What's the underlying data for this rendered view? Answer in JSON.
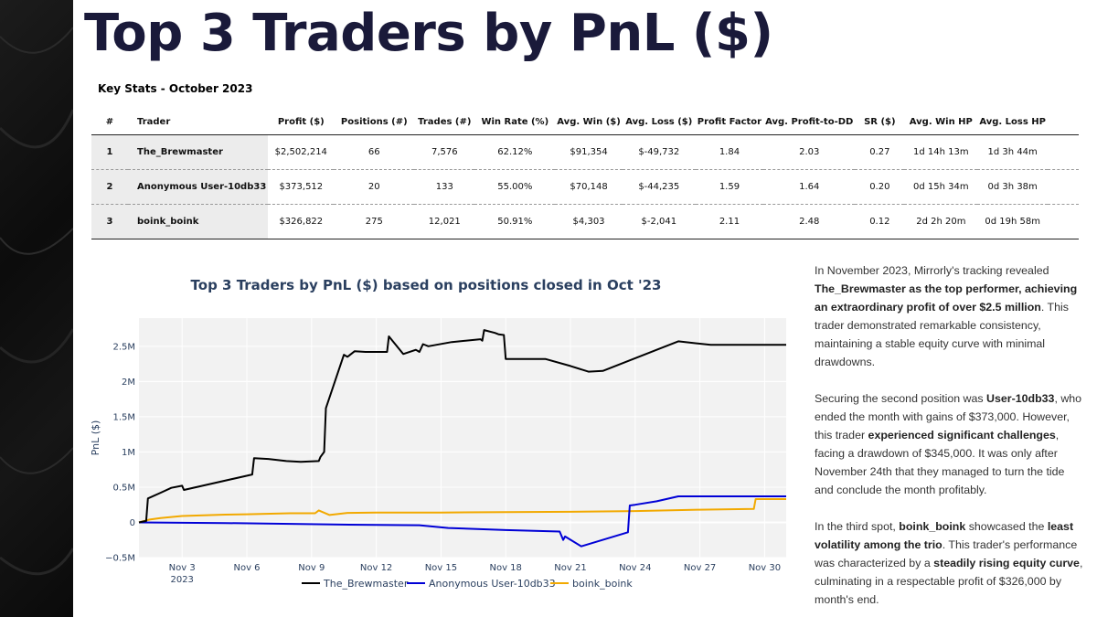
{
  "header": {
    "title": "Top 3 Traders by PnL ($)"
  },
  "stats": {
    "heading": "Key Stats - October 2023",
    "columns": [
      "#",
      "Trader",
      "Profit ($)",
      "Positions (#)",
      "Trades (#)",
      "Win Rate (%)",
      "Avg. Win ($)",
      "Avg. Loss ($)",
      "Profit Factor",
      "Avg. Profit-to-DD",
      "SR ($)",
      "Avg. Win HP",
      "Avg. Loss HP"
    ],
    "rows": [
      [
        "1",
        "The_Brewmaster",
        "$2,502,214",
        "66",
        "7,576",
        "62.12%",
        "$91,354",
        "$-49,732",
        "1.84",
        "2.03",
        "0.27",
        "1d 14h 13m",
        "1d 3h 44m"
      ],
      [
        "2",
        "Anonymous User-10db33",
        "$373,512",
        "20",
        "133",
        "55.00%",
        "$70,148",
        "$-44,235",
        "1.59",
        "1.64",
        "0.20",
        "0d 15h 34m",
        "0d 3h 38m"
      ],
      [
        "3",
        "boink_boink",
        "$326,822",
        "275",
        "12,021",
        "50.91%",
        "$4,303",
        "$-2,041",
        "2.11",
        "2.48",
        "0.12",
        "2d 2h 20m",
        "0d 19h 58m"
      ]
    ]
  },
  "chart_data": {
    "type": "line",
    "title": "Top 3 Traders by PnL ($) based on positions closed in Oct '23",
    "xlabel": "",
    "ylabel": "PnL ($)",
    "xlim": [
      "2023-11-01",
      "2023-12-01"
    ],
    "ylim": [
      -500000,
      2900000
    ],
    "x_ticks": [
      {
        "date": "2023-11-03",
        "label": "Nov 3",
        "sublabel": "2023"
      },
      {
        "date": "2023-11-06",
        "label": "Nov 6",
        "sublabel": ""
      },
      {
        "date": "2023-11-09",
        "label": "Nov 9",
        "sublabel": ""
      },
      {
        "date": "2023-11-12",
        "label": "Nov 12",
        "sublabel": ""
      },
      {
        "date": "2023-11-15",
        "label": "Nov 15",
        "sublabel": ""
      },
      {
        "date": "2023-11-18",
        "label": "Nov 18",
        "sublabel": ""
      },
      {
        "date": "2023-11-21",
        "label": "Nov 21",
        "sublabel": ""
      },
      {
        "date": "2023-11-24",
        "label": "Nov 24",
        "sublabel": ""
      },
      {
        "date": "2023-11-27",
        "label": "Nov 27",
        "sublabel": ""
      },
      {
        "date": "2023-11-30",
        "label": "Nov 30",
        "sublabel": ""
      }
    ],
    "y_ticks": [
      {
        "value": -500000,
        "label": "−0.5M"
      },
      {
        "value": 0,
        "label": "0"
      },
      {
        "value": 500000,
        "label": "0.5M"
      },
      {
        "value": 1000000,
        "label": "1M"
      },
      {
        "value": 1500000,
        "label": "1.5M"
      },
      {
        "value": 2000000,
        "label": "2M"
      },
      {
        "value": 2500000,
        "label": "2.5M"
      }
    ],
    "grid": true,
    "legend_position": "bottom-center",
    "series": [
      {
        "name": "The_Brewmaster",
        "color": "#000000",
        "points": [
          [
            "2023-11-01 00:00",
            0
          ],
          [
            "2023-11-01 08:00",
            20000
          ],
          [
            "2023-11-01 10:00",
            340000
          ],
          [
            "2023-11-02 00:00",
            420000
          ],
          [
            "2023-11-02 12:00",
            490000
          ],
          [
            "2023-11-03 00:00",
            520000
          ],
          [
            "2023-11-03 02:00",
            460000
          ],
          [
            "2023-11-06 06:00",
            680000
          ],
          [
            "2023-11-06 08:00",
            910000
          ],
          [
            "2023-11-07 00:00",
            900000
          ],
          [
            "2023-11-07 20:00",
            870000
          ],
          [
            "2023-11-08 12:00",
            860000
          ],
          [
            "2023-11-09 08:00",
            870000
          ],
          [
            "2023-11-09 10:00",
            930000
          ],
          [
            "2023-11-09 14:00",
            1000000
          ],
          [
            "2023-11-09 16:00",
            1620000
          ],
          [
            "2023-11-10 12:00",
            2380000
          ],
          [
            "2023-11-10 16:00",
            2350000
          ],
          [
            "2023-11-11 00:00",
            2430000
          ],
          [
            "2023-11-11 12:00",
            2420000
          ],
          [
            "2023-11-12 12:00",
            2420000
          ],
          [
            "2023-11-12 14:00",
            2640000
          ],
          [
            "2023-11-13 06:00",
            2390000
          ],
          [
            "2023-11-13 20:00",
            2450000
          ],
          [
            "2023-11-14 00:00",
            2420000
          ],
          [
            "2023-11-14 04:00",
            2530000
          ],
          [
            "2023-11-14 10:00",
            2500000
          ],
          [
            "2023-11-15 12:00",
            2560000
          ],
          [
            "2023-11-16 20:00",
            2600000
          ],
          [
            "2023-11-16 22:00",
            2580000
          ],
          [
            "2023-11-17 00:00",
            2730000
          ],
          [
            "2023-11-17 12:00",
            2690000
          ],
          [
            "2023-11-17 16:00",
            2670000
          ],
          [
            "2023-11-17 22:00",
            2660000
          ],
          [
            "2023-11-18 00:00",
            2320000
          ],
          [
            "2023-11-19 20:00",
            2320000
          ],
          [
            "2023-11-21 00:00",
            2220000
          ],
          [
            "2023-11-21 20:00",
            2140000
          ],
          [
            "2023-11-22 12:00",
            2150000
          ],
          [
            "2023-11-26 00:00",
            2570000
          ],
          [
            "2023-11-27 12:00",
            2520000
          ],
          [
            "2023-12-01 00:00",
            2520000
          ]
        ]
      },
      {
        "name": "Anonymous User-10db33",
        "color": "#0000d6",
        "points": [
          [
            "2023-11-01 00:00",
            0
          ],
          [
            "2023-11-05 00:00",
            -10000
          ],
          [
            "2023-11-10 00:00",
            -30000
          ],
          [
            "2023-11-14 00:00",
            -40000
          ],
          [
            "2023-11-15 08:00",
            -80000
          ],
          [
            "2023-11-18 00:00",
            -110000
          ],
          [
            "2023-11-20 12:00",
            -130000
          ],
          [
            "2023-11-20 16:00",
            -250000
          ],
          [
            "2023-11-20 18:00",
            -200000
          ],
          [
            "2023-11-21 12:00",
            -340000
          ],
          [
            "2023-11-23 16:00",
            -140000
          ],
          [
            "2023-11-23 18:00",
            240000
          ],
          [
            "2023-11-24 00:00",
            250000
          ],
          [
            "2023-11-25 00:00",
            300000
          ],
          [
            "2023-11-26 00:00",
            370000
          ],
          [
            "2023-11-28 00:00",
            370000
          ],
          [
            "2023-12-01 00:00",
            370000
          ]
        ]
      },
      {
        "name": "boink_boink",
        "color": "#f2a900",
        "points": [
          [
            "2023-11-01 00:00",
            0
          ],
          [
            "2023-11-01 12:00",
            40000
          ],
          [
            "2023-11-02 00:00",
            60000
          ],
          [
            "2023-11-03 00:00",
            90000
          ],
          [
            "2023-11-04 00:00",
            100000
          ],
          [
            "2023-11-05 00:00",
            110000
          ],
          [
            "2023-11-06 00:00",
            115000
          ],
          [
            "2023-11-08 00:00",
            130000
          ],
          [
            "2023-11-09 04:00",
            130000
          ],
          [
            "2023-11-09 08:00",
            170000
          ],
          [
            "2023-11-09 20:00",
            105000
          ],
          [
            "2023-11-10 16:00",
            135000
          ],
          [
            "2023-11-12 00:00",
            140000
          ],
          [
            "2023-11-15 00:00",
            140000
          ],
          [
            "2023-11-18 00:00",
            145000
          ],
          [
            "2023-11-21 00:00",
            150000
          ],
          [
            "2023-11-24 00:00",
            160000
          ],
          [
            "2023-11-27 00:00",
            180000
          ],
          [
            "2023-11-29 12:00",
            190000
          ],
          [
            "2023-11-29 14:00",
            330000
          ],
          [
            "2023-12-01 00:00",
            330000
          ]
        ]
      }
    ]
  },
  "commentary": {
    "p1": [
      {
        "t": "In November 2023, Mirrorly's tracking revealed ",
        "b": false
      },
      {
        "t": "The_Brewmaster as the top performer, achieving an extraordinary profit of over $2.5 million",
        "b": true
      },
      {
        "t": ". This trader demonstrated remarkable consistency, maintaining a stable equity curve with minimal drawdowns.",
        "b": false
      }
    ],
    "p2": [
      {
        "t": "Securing the second position was ",
        "b": false
      },
      {
        "t": "User-10db33",
        "b": true
      },
      {
        "t": ", who ended the month with gains of $373,000. However, this trader ",
        "b": false
      },
      {
        "t": "experienced significant challenges",
        "b": true
      },
      {
        "t": ", facing a drawdown of $345,000. It was only after November 24th that they managed to turn the tide and conclude the month profitably.",
        "b": false
      }
    ],
    "p3": [
      {
        "t": "In the third spot, ",
        "b": false
      },
      {
        "t": "boink_boink",
        "b": true
      },
      {
        "t": " showcased the ",
        "b": false
      },
      {
        "t": "least volatility among the trio",
        "b": true
      },
      {
        "t": ". This trader's performance was characterized by a ",
        "b": false
      },
      {
        "t": "steadily rising equity curve",
        "b": true
      },
      {
        "t": ", culminating in a respectable profit of $326,000 by month's end.",
        "b": false
      }
    ]
  }
}
